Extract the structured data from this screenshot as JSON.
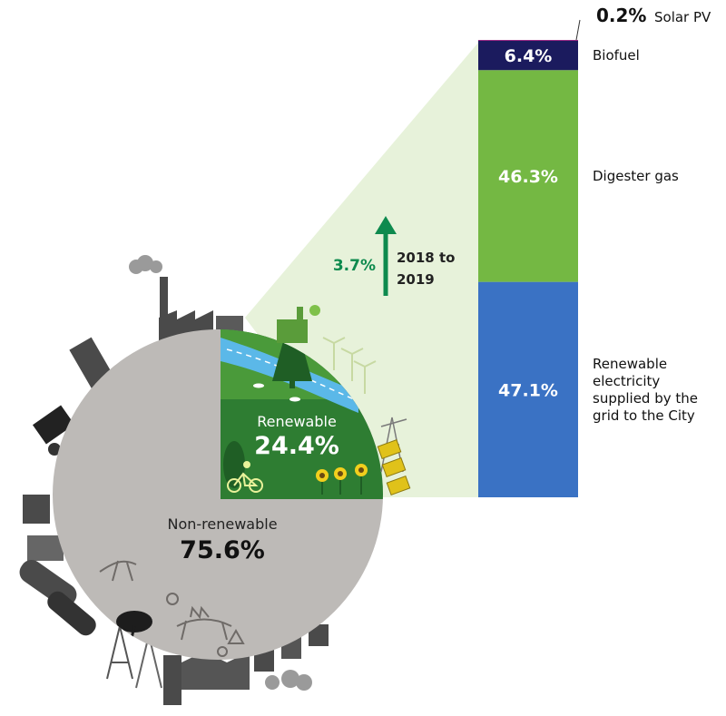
{
  "chart_data": {
    "type": "pie",
    "title": "",
    "slices": [
      {
        "label": "Renewable",
        "value": 24.4,
        "value_label": "24.4%",
        "color": "#2e7d32"
      },
      {
        "label": "Non-renewable",
        "value": 75.6,
        "value_label": "75.6%",
        "color": "#bdbab7"
      }
    ],
    "breakdown": {
      "type": "stacked-bar",
      "of": "Renewable",
      "segments": [
        {
          "label": "Renewable electricity supplied by the grid to the City",
          "label_lines": [
            "Renewable",
            "electricity",
            "supplied by the",
            "grid to the City"
          ],
          "value": 47.1,
          "value_label": "47.1%",
          "color": "#3a72c4"
        },
        {
          "label": "Digester gas",
          "label_lines": [
            "Digester gas"
          ],
          "value": 46.3,
          "value_label": "46.3%",
          "color": "#74b843"
        },
        {
          "label": "Biofuel",
          "label_lines": [
            "Biofuel"
          ],
          "value": 6.4,
          "value_label": "6.4%",
          "color": "#1b1b5e"
        },
        {
          "label": "Solar PV",
          "label_lines": [
            "Solar PV"
          ],
          "value": 0.2,
          "value_label": "0.2%",
          "color": "#9b2a86"
        }
      ]
    },
    "annotation": {
      "value": "3.7%",
      "label_lines": [
        "2018 to",
        "2019"
      ],
      "direction": "up",
      "color": "#0e8a4e"
    }
  },
  "colors": {
    "renewable_dark": "#2e7d32",
    "renewable_light": "#4a9a3a",
    "river": "#5bb8e8",
    "zoom_band": "#e7f2da",
    "industry": "#4a4a4a"
  },
  "icons": [
    "factory-icon",
    "windmill-icon",
    "tree-icon",
    "cyclist-icon",
    "sunflower-icon",
    "solar-panel-icon",
    "transmission-tower-icon",
    "dinosaur-fossil-icon",
    "oil-tank-icon",
    "truck-icon"
  ]
}
